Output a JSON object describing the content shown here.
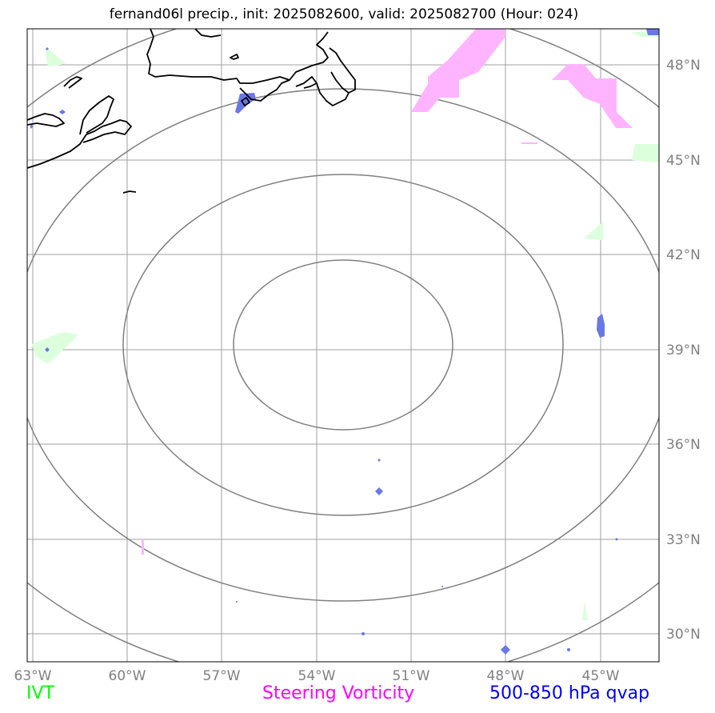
{
  "title": "fernand06l precip., init: 2025082600, valid: 2025082700 (Hour: 024)",
  "lon_ticks": [
    "63°W",
    "60°W",
    "57°W",
    "54°W",
    "51°W",
    "48°W",
    "45°W"
  ],
  "lat_ticks": [
    "48°N",
    "45°N",
    "42°N",
    "39°N",
    "36°N",
    "33°N",
    "30°N"
  ],
  "legend": {
    "ivt": {
      "label": "IVT",
      "color": "#00ff00"
    },
    "vorticity": {
      "label": "Steering Vorticity",
      "color": "#ff00ff"
    },
    "qvap": {
      "label": "500-850 hPa qvap",
      "color": "#0000ff"
    }
  },
  "colors": {
    "grid": "#a0a0a0",
    "range_rings": "#808080",
    "coastline": "#000000",
    "ivt_fill": "#dcffdc",
    "vorticity_fill": "#ffb4ff",
    "qvap_fill": "#6a78e6"
  }
}
